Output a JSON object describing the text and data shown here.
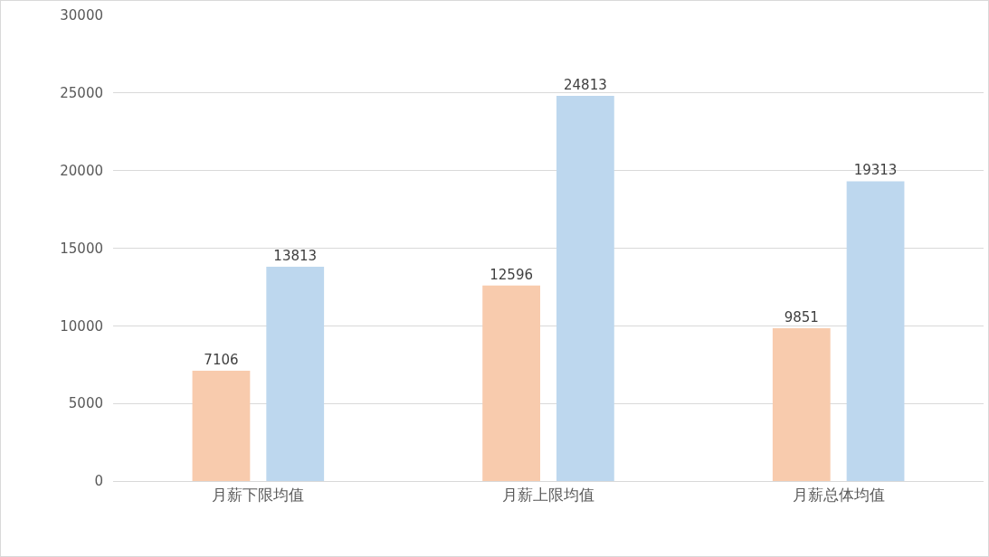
{
  "chart_data": {
    "type": "bar",
    "categories": [
      "月薪下限均值",
      "月薪上限均值",
      "月薪总体均值"
    ],
    "series": [
      {
        "color": "#f8cbad",
        "values": [
          7106,
          12596,
          9851
        ]
      },
      {
        "color": "#bdd7ee",
        "values": [
          13813,
          24813,
          19313
        ]
      }
    ],
    "ylim": [
      0,
      30000
    ],
    "yticks": [
      0,
      5000,
      10000,
      15000,
      20000,
      25000,
      30000
    ],
    "grid": "y",
    "data_labels": true
  }
}
